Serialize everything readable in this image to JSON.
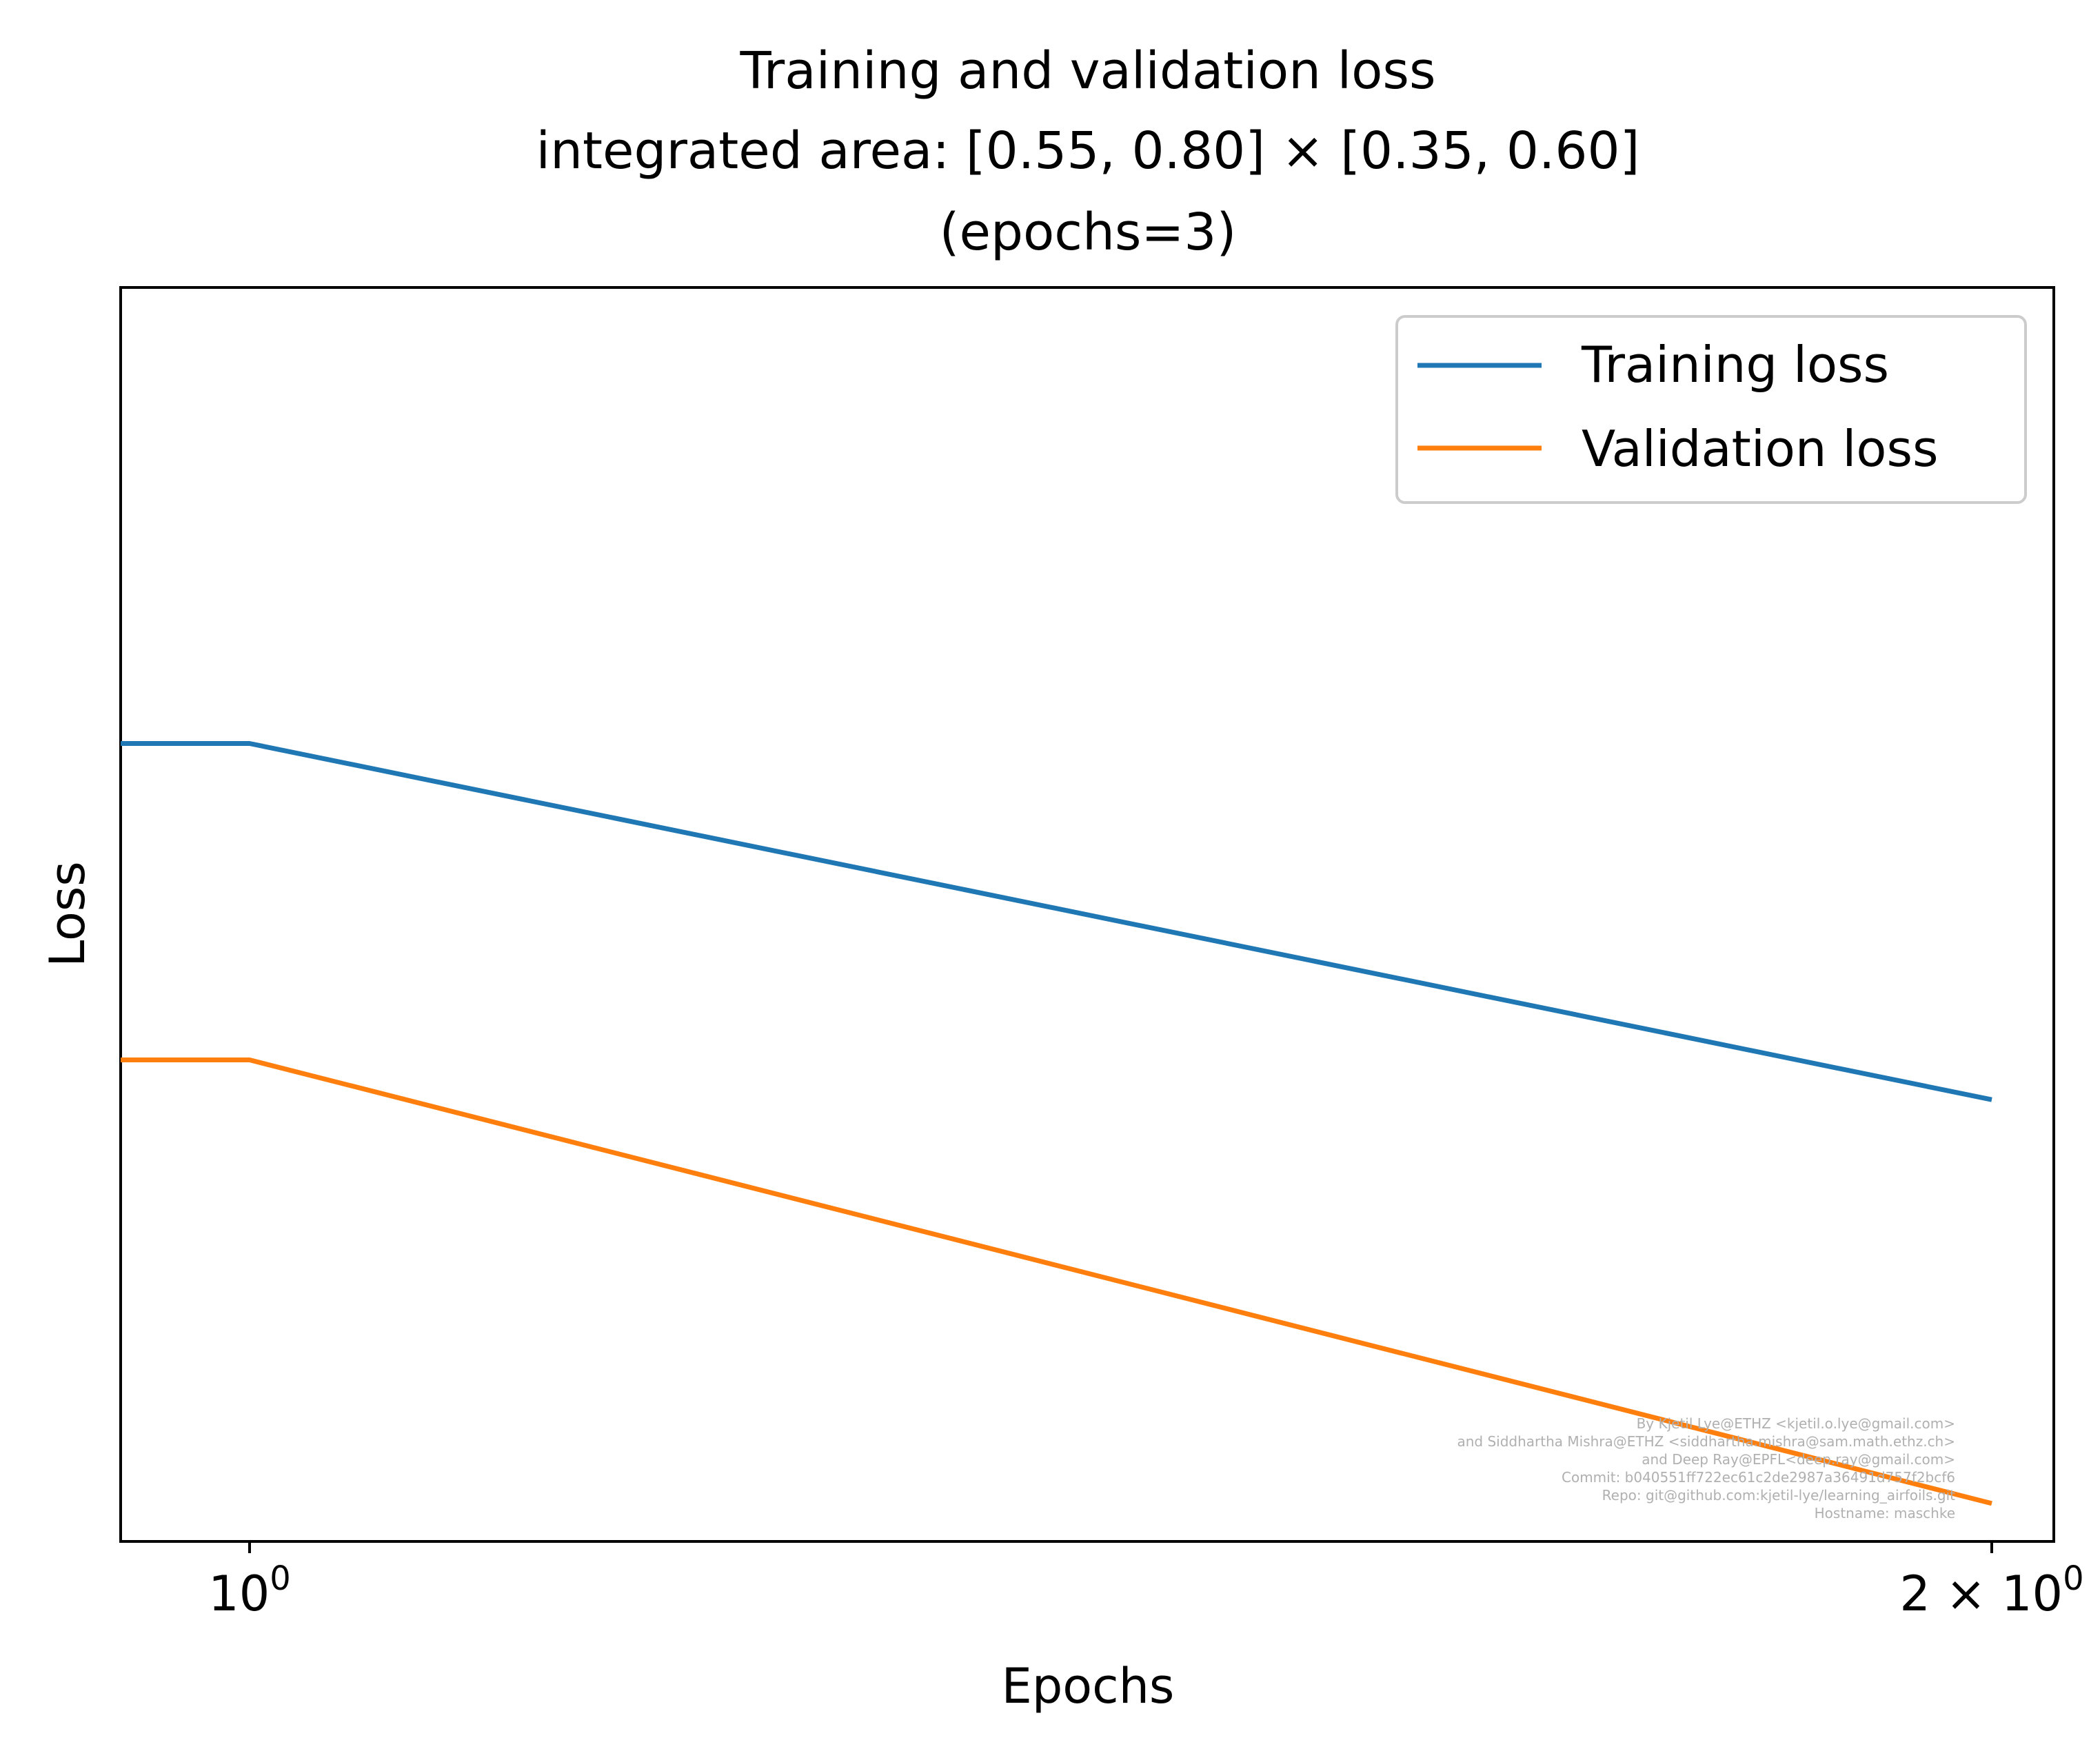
{
  "chart_data": {
    "type": "line",
    "title_lines": [
      "Training and validation loss",
      "integrated area: [0.55, 0.80] × [0.35, 0.60]",
      "(epochs=3)"
    ],
    "xlabel": "Epochs",
    "ylabel": "Loss",
    "x_scale": "log",
    "y_scale": "log",
    "xlim": [
      0.95,
      2.05
    ],
    "x_ticks": [
      {
        "value": 1,
        "label_base": "10",
        "label_exp": "0"
      },
      {
        "value": 2,
        "label_base": "2 × 10",
        "label_exp": "0"
      }
    ],
    "y_ticks": [],
    "grid": false,
    "legend_position": "upper right",
    "series": [
      {
        "name": "Training loss",
        "color": "#1f77b4",
        "x": [
          0,
          1,
          2
        ],
        "y": [
          0.00072,
          0.00072,
          0.00051
        ]
      },
      {
        "name": "Validation loss",
        "color": "#ff7f0e",
        "x": [
          0,
          1,
          2
        ],
        "y": [
          0.00053,
          0.00053,
          0.000345
        ]
      }
    ]
  },
  "credits": [
    "By Kjetil Lye@ETHZ <kjetil.o.lye@gmail.com>",
    "and Siddhartha Mishra@ETHZ <siddhartha.mishra@sam.math.ethz.ch>",
    "and Deep Ray@EPFL<deep.ray@gmail.com>",
    "Commit: b040551ff722ec61c2de2987a36491d757f2bcf6",
    "Repo: git@github.com:kjetil-lye/learning_airfoils.git",
    "Hostname: maschke"
  ]
}
